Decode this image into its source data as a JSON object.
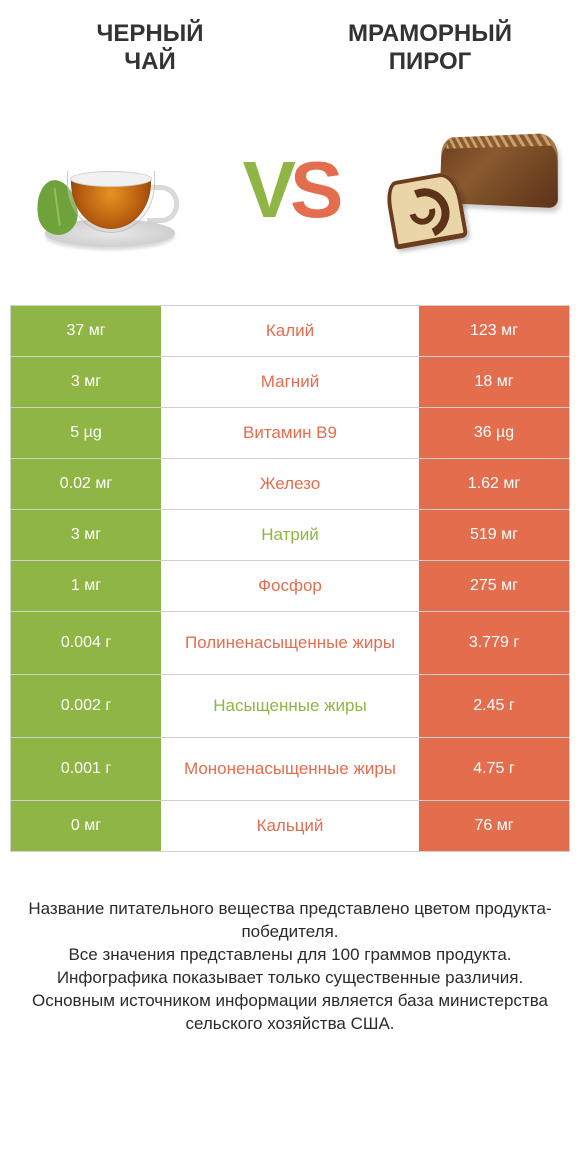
{
  "colors": {
    "left": "#8fb544",
    "right": "#e46d4e",
    "text_dark": "#333333"
  },
  "header": {
    "left_line1": "ЧЕРНЫЙ",
    "left_line2": "ЧАЙ",
    "right_line1": "МРАМОРНЫЙ",
    "right_line2": "ПИРОГ"
  },
  "vs": {
    "v": "V",
    "s": "S"
  },
  "rows": [
    {
      "left": "37 мг",
      "center": "Калий",
      "right": "123 мг",
      "winner": "right",
      "tall": false
    },
    {
      "left": "3 мг",
      "center": "Магний",
      "right": "18 мг",
      "winner": "right",
      "tall": false
    },
    {
      "left": "5 µg",
      "center": "Витамин B9",
      "right": "36 µg",
      "winner": "right",
      "tall": false
    },
    {
      "left": "0.02 мг",
      "center": "Железо",
      "right": "1.62 мг",
      "winner": "right",
      "tall": false
    },
    {
      "left": "3 мг",
      "center": "Натрий",
      "right": "519 мг",
      "winner": "left",
      "tall": false
    },
    {
      "left": "1 мг",
      "center": "Фосфор",
      "right": "275 мг",
      "winner": "right",
      "tall": false
    },
    {
      "left": "0.004 г",
      "center": "Полиненасыщенные жиры",
      "right": "3.779 г",
      "winner": "right",
      "tall": true
    },
    {
      "left": "0.002 г",
      "center": "Насыщенные жиры",
      "right": "2.45 г",
      "winner": "left",
      "tall": true
    },
    {
      "left": "0.001 г",
      "center": "Мононенасыщенные жиры",
      "right": "4.75 г",
      "winner": "right",
      "tall": true
    },
    {
      "left": "0 мг",
      "center": "Кальций",
      "right": "76 мг",
      "winner": "right",
      "tall": false
    }
  ],
  "footnote": {
    "l1": "Название питательного вещества представлено цветом продукта-победителя.",
    "l2": "Все значения представлены для 100 граммов продукта.",
    "l3": "Инфографика показывает только существенные различия.",
    "l4": "Основным источником информации является база министерства сельского хозяйства США."
  }
}
